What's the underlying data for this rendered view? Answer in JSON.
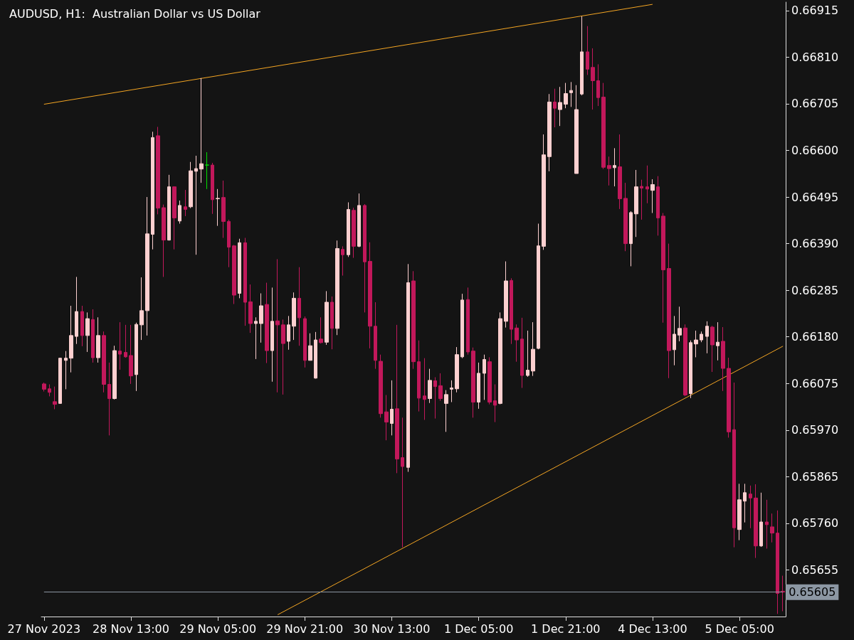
{
  "chart_data": {
    "type": "candlestick",
    "title": "AUDUSD, H1:  Australian Dollar vs US Dollar",
    "categories": [
      "27 Nov 2023",
      null,
      null,
      null,
      null,
      null,
      null,
      null,
      null,
      null,
      null,
      null,
      null,
      null,
      null,
      null,
      "28 Nov 13:00",
      null,
      null,
      null,
      null,
      null,
      null,
      null,
      null,
      null,
      null,
      null,
      null,
      null,
      null,
      null,
      "29 Nov 05:00",
      null,
      null,
      null,
      null,
      null,
      null,
      null,
      null,
      null,
      null,
      null,
      null,
      null,
      null,
      null,
      "29 Nov 21:00",
      null,
      null,
      null,
      null,
      null,
      null,
      null,
      null,
      null,
      null,
      null,
      null,
      null,
      null,
      null,
      "30 Nov 13:00",
      null,
      null,
      null,
      null,
      null,
      null,
      null,
      null,
      null,
      null,
      null,
      null,
      null,
      null,
      null,
      "1 Dec 05:00",
      null,
      null,
      null,
      null,
      null,
      null,
      null,
      null,
      null,
      null,
      null,
      null,
      null,
      null,
      null,
      "1 Dec 21:00",
      null,
      null,
      null,
      null,
      null,
      null,
      null,
      null,
      null,
      null,
      null,
      null,
      null,
      null,
      null,
      "4 Dec 13:00",
      null,
      null,
      null,
      null,
      null,
      null,
      null,
      null,
      null,
      null,
      null,
      null,
      null,
      null,
      null,
      "5 Dec 05:00",
      null,
      null,
      null,
      null,
      null,
      null,
      null,
      null
    ],
    "ohlc": [
      [
        0.66074,
        0.66077,
        0.66057,
        0.66062
      ],
      [
        0.66063,
        0.66073,
        0.66046,
        0.66055
      ],
      [
        0.66034,
        0.66068,
        0.66017,
        0.66028
      ],
      [
        0.6603,
        0.66133,
        0.6603,
        0.66132
      ],
      [
        0.66127,
        0.66148,
        0.66062,
        0.66132
      ],
      [
        0.66132,
        0.6625,
        0.661,
        0.66183
      ],
      [
        0.66181,
        0.66315,
        0.66164,
        0.66237
      ],
      [
        0.66237,
        0.6625,
        0.66159,
        0.66183
      ],
      [
        0.66183,
        0.66235,
        0.66146,
        0.66221
      ],
      [
        0.66219,
        0.66242,
        0.66122,
        0.66133
      ],
      [
        0.66133,
        0.66224,
        0.66122,
        0.66183
      ],
      [
        0.66183,
        0.66192,
        0.66055,
        0.66073
      ],
      [
        0.66073,
        0.66122,
        0.65958,
        0.66041
      ],
      [
        0.66041,
        0.6616,
        0.66039,
        0.66149
      ],
      [
        0.66148,
        0.66213,
        0.66106,
        0.66141
      ],
      [
        0.66145,
        0.66207,
        0.66133,
        0.66135
      ],
      [
        0.66138,
        0.66207,
        0.66074,
        0.66092
      ],
      [
        0.66095,
        0.66212,
        0.66058,
        0.66208
      ],
      [
        0.66207,
        0.66314,
        0.66173,
        0.66239
      ],
      [
        0.66239,
        0.66495,
        0.66183,
        0.66412
      ],
      [
        0.66411,
        0.66642,
        0.66377,
        0.66629
      ],
      [
        0.66633,
        0.66653,
        0.66456,
        0.6647
      ],
      [
        0.66471,
        0.66478,
        0.66315,
        0.66398
      ],
      [
        0.66398,
        0.66545,
        0.66397,
        0.66518
      ],
      [
        0.66518,
        0.66519,
        0.66377,
        0.66448
      ],
      [
        0.66441,
        0.66487,
        0.66435,
        0.66476
      ],
      [
        0.66473,
        0.66511,
        0.66452,
        0.66467
      ],
      [
        0.66473,
        0.66574,
        0.6647,
        0.66554
      ],
      [
        0.66553,
        0.66588,
        0.66365,
        0.66559
      ],
      [
        0.66558,
        0.66763,
        0.66527,
        0.6657
      ],
      [
        0.66567,
        0.66596,
        0.66513,
        0.66567
      ],
      [
        0.66567,
        0.66572,
        0.66457,
        0.66489
      ],
      [
        0.66491,
        0.66513,
        0.6643,
        0.66492
      ],
      [
        0.66494,
        0.66532,
        0.66403,
        0.6644
      ],
      [
        0.6644,
        0.66444,
        0.66337,
        0.66382
      ],
      [
        0.66385,
        0.66387,
        0.66254,
        0.66274
      ],
      [
        0.66278,
        0.66401,
        0.66267,
        0.66392
      ],
      [
        0.66392,
        0.66403,
        0.66205,
        0.66258
      ],
      [
        0.66259,
        0.66298,
        0.66189,
        0.6621
      ],
      [
        0.6621,
        0.66224,
        0.6613,
        0.66215
      ],
      [
        0.6621,
        0.66278,
        0.66167,
        0.6625
      ],
      [
        0.66253,
        0.66302,
        0.66121,
        0.66149
      ],
      [
        0.66149,
        0.66291,
        0.66079,
        0.66215
      ],
      [
        0.66216,
        0.66355,
        0.66055,
        0.66207
      ],
      [
        0.66207,
        0.66219,
        0.6605,
        0.66165
      ],
      [
        0.6617,
        0.66227,
        0.66151,
        0.66207
      ],
      [
        0.66204,
        0.6628,
        0.66173,
        0.66267
      ],
      [
        0.66267,
        0.66337,
        0.6616,
        0.66223
      ],
      [
        0.66221,
        0.66226,
        0.66111,
        0.66127
      ],
      [
        0.66127,
        0.66188,
        0.66127,
        0.6616
      ],
      [
        0.66087,
        0.66191,
        0.66086,
        0.66173
      ],
      [
        0.66175,
        0.66224,
        0.66165,
        0.66167
      ],
      [
        0.66168,
        0.66283,
        0.66162,
        0.66258
      ],
      [
        0.66258,
        0.66271,
        0.66152,
        0.66199
      ],
      [
        0.66199,
        0.66397,
        0.66184,
        0.66379
      ],
      [
        0.66377,
        0.66384,
        0.66318,
        0.66365
      ],
      [
        0.66365,
        0.66483,
        0.6636,
        0.66467
      ],
      [
        0.66465,
        0.66471,
        0.66358,
        0.66384
      ],
      [
        0.66384,
        0.66503,
        0.66382,
        0.66476
      ],
      [
        0.66476,
        0.66479,
        0.66235,
        0.66349
      ],
      [
        0.6635,
        0.66393,
        0.66154,
        0.66204
      ],
      [
        0.66204,
        0.66258,
        0.66108,
        0.66127
      ],
      [
        0.66125,
        0.6614,
        0.65998,
        0.66007
      ],
      [
        0.66011,
        0.66049,
        0.65947,
        0.65988
      ],
      [
        0.65985,
        0.66082,
        0.65958,
        0.66017
      ],
      [
        0.66018,
        0.66207,
        0.65873,
        0.65905
      ],
      [
        0.65908,
        0.65998,
        0.65706,
        0.65888
      ],
      [
        0.65886,
        0.66344,
        0.65876,
        0.66302
      ],
      [
        0.66306,
        0.66328,
        0.66108,
        0.66124
      ],
      [
        0.66124,
        0.66172,
        0.66012,
        0.66042
      ],
      [
        0.66047,
        0.66132,
        0.65993,
        0.66039
      ],
      [
        0.66041,
        0.66108,
        0.66031,
        0.66082
      ],
      [
        0.66081,
        0.66089,
        0.65996,
        0.66068
      ],
      [
        0.6607,
        0.66098,
        0.66036,
        0.66041
      ],
      [
        0.6603,
        0.6606,
        0.65966,
        0.6605
      ],
      [
        0.66062,
        0.66082,
        0.66033,
        0.66065
      ],
      [
        0.66063,
        0.66157,
        0.66055,
        0.6614
      ],
      [
        0.66135,
        0.66277,
        0.66132,
        0.66263
      ],
      [
        0.66264,
        0.66291,
        0.6614,
        0.66146
      ],
      [
        0.66148,
        0.66156,
        0.65998,
        0.66033
      ],
      [
        0.66033,
        0.66122,
        0.66018,
        0.66098
      ],
      [
        0.66098,
        0.6614,
        0.66038,
        0.66129
      ],
      [
        0.66124,
        0.66134,
        0.66028,
        0.66033
      ],
      [
        0.66036,
        0.66073,
        0.65988,
        0.66026
      ],
      [
        0.6603,
        0.66235,
        0.66028,
        0.66221
      ],
      [
        0.66215,
        0.6635,
        0.66201,
        0.66306
      ],
      [
        0.66307,
        0.66312,
        0.66164,
        0.66197
      ],
      [
        0.662,
        0.66208,
        0.66124,
        0.66173
      ],
      [
        0.66175,
        0.66223,
        0.66065,
        0.66093
      ],
      [
        0.66093,
        0.66194,
        0.6609,
        0.66105
      ],
      [
        0.66103,
        0.66213,
        0.66092,
        0.66152
      ],
      [
        0.66154,
        0.66435,
        0.66152,
        0.66385
      ],
      [
        0.66384,
        0.66636,
        0.66376,
        0.6659
      ],
      [
        0.66586,
        0.66727,
        0.66553,
        0.66709
      ],
      [
        0.66709,
        0.66739,
        0.66652,
        0.66695
      ],
      [
        0.66692,
        0.66743,
        0.66655,
        0.66708
      ],
      [
        0.66704,
        0.66752,
        0.66695,
        0.66728
      ],
      [
        0.6673,
        0.66754,
        0.66698,
        0.66735
      ],
      [
        0.66548,
        0.66747,
        0.66548,
        0.66692
      ],
      [
        0.66727,
        0.66902,
        0.66724,
        0.66822
      ],
      [
        0.66822,
        0.6688,
        0.6677,
        0.66783
      ],
      [
        0.66787,
        0.6683,
        0.66692,
        0.66757
      ],
      [
        0.66757,
        0.66794,
        0.667,
        0.66719
      ],
      [
        0.6672,
        0.66752,
        0.66558,
        0.66562
      ],
      [
        0.66566,
        0.66586,
        0.66521,
        0.66559
      ],
      [
        0.66561,
        0.66605,
        0.66519,
        0.66566
      ],
      [
        0.66563,
        0.66636,
        0.66468,
        0.66491
      ],
      [
        0.66492,
        0.66527,
        0.66373,
        0.6639
      ],
      [
        0.6639,
        0.66463,
        0.66339,
        0.6646
      ],
      [
        0.66457,
        0.66556,
        0.66405,
        0.66518
      ],
      [
        0.66519,
        0.66534,
        0.66444,
        0.66515
      ],
      [
        0.66518,
        0.66566,
        0.66481,
        0.66513
      ],
      [
        0.6651,
        0.66535,
        0.66459,
        0.66523
      ],
      [
        0.66518,
        0.66542,
        0.66408,
        0.66448
      ],
      [
        0.66452,
        0.66459,
        0.66212,
        0.66331
      ],
      [
        0.66334,
        0.6639,
        0.66087,
        0.66149
      ],
      [
        0.66151,
        0.66227,
        0.66116,
        0.66186
      ],
      [
        0.66184,
        0.66248,
        0.6617,
        0.66199
      ],
      [
        0.662,
        0.66208,
        0.66046,
        0.66049
      ],
      [
        0.66052,
        0.66172,
        0.66042,
        0.66167
      ],
      [
        0.66164,
        0.66194,
        0.66134,
        0.66173
      ],
      [
        0.66173,
        0.66192,
        0.66168,
        0.66186
      ],
      [
        0.66181,
        0.66215,
        0.66143,
        0.66204
      ],
      [
        0.66202,
        0.66205,
        0.66101,
        0.66162
      ],
      [
        0.6616,
        0.66213,
        0.66127,
        0.66168
      ],
      [
        0.6617,
        0.66202,
        0.66058,
        0.66109
      ],
      [
        0.66109,
        0.66133,
        0.65953,
        0.65966
      ],
      [
        0.65971,
        0.66077,
        0.65706,
        0.6575
      ],
      [
        0.65746,
        0.65849,
        0.65722,
        0.65813
      ],
      [
        0.6581,
        0.65849,
        0.65762,
        0.65829
      ],
      [
        0.65826,
        0.65845,
        0.65749,
        0.65817
      ],
      [
        0.65817,
        0.65848,
        0.65682,
        0.65709
      ],
      [
        0.65709,
        0.65829,
        0.65707,
        0.65763
      ],
      [
        0.65763,
        0.65813,
        0.65703,
        0.65757
      ],
      [
        0.65752,
        0.65782,
        0.65717,
        0.65738
      ],
      [
        0.65738,
        0.65789,
        0.65556,
        0.65602
      ],
      [
        0.65607,
        0.65642,
        0.65562,
        0.65605
      ]
    ],
    "colors": [
      "#c2185b",
      "#c2185b",
      "#c2185b",
      "#fdd0d0",
      "#fdd0d0",
      "#fdd0d0",
      "#fdd0d0",
      "#c2185b",
      "#fdd0d0",
      "#c2185b",
      "#fdd0d0",
      "#c2185b",
      "#c2185b",
      "#fdd0d0",
      "#c2185b",
      "#c2185b",
      "#c2185b",
      "#fdd0d0",
      "#fdd0d0",
      "#fdd0d0",
      "#fdd0d0",
      "#c2185b",
      "#c2185b",
      "#fdd0d0",
      "#c2185b",
      "#fdd0d0",
      "#c2185b",
      "#fdd0d0",
      "#fdd0d0",
      "#fdd0d0",
      "#00e000",
      "#c2185b",
      "#fdd0d0",
      "#c2185b",
      "#c2185b",
      "#c2185b",
      "#fdd0d0",
      "#c2185b",
      "#c2185b",
      "#fdd0d0",
      "#fdd0d0",
      "#c2185b",
      "#fdd0d0",
      "#c2185b",
      "#c2185b",
      "#fdd0d0",
      "#fdd0d0",
      "#c2185b",
      "#c2185b",
      "#fdd0d0",
      "#fdd0d0",
      "#c2185b",
      "#fdd0d0",
      "#c2185b",
      "#fdd0d0",
      "#c2185b",
      "#fdd0d0",
      "#c2185b",
      "#fdd0d0",
      "#c2185b",
      "#c2185b",
      "#c2185b",
      "#c2185b",
      "#c2185b",
      "#fdd0d0",
      "#c2185b",
      "#c2185b",
      "#fdd0d0",
      "#c2185b",
      "#c2185b",
      "#c2185b",
      "#fdd0d0",
      "#c2185b",
      "#c2185b",
      "#fdd0d0",
      "#fdd0d0",
      "#fdd0d0",
      "#fdd0d0",
      "#c2185b",
      "#c2185b",
      "#fdd0d0",
      "#fdd0d0",
      "#c2185b",
      "#c2185b",
      "#fdd0d0",
      "#fdd0d0",
      "#c2185b",
      "#c2185b",
      "#c2185b",
      "#fdd0d0",
      "#fdd0d0",
      "#fdd0d0",
      "#fdd0d0",
      "#fdd0d0",
      "#c2185b",
      "#fdd0d0",
      "#fdd0d0",
      "#fdd0d0",
      "#fdd0d0",
      "#fdd0d0",
      "#c2185b",
      "#c2185b",
      "#c2185b",
      "#c2185b",
      "#c2185b",
      "#fdd0d0",
      "#c2185b",
      "#c2185b",
      "#fdd0d0",
      "#fdd0d0",
      "#c2185b",
      "#c2185b",
      "#fdd0d0",
      "#c2185b",
      "#c2185b",
      "#c2185b",
      "#fdd0d0",
      "#fdd0d0",
      "#c2185b",
      "#fdd0d0",
      "#fdd0d0",
      "#fdd0d0",
      "#fdd0d0",
      "#c2185b",
      "#fdd0d0",
      "#c2185b",
      "#c2185b",
      "#c2185b",
      "#fdd0d0",
      "#fdd0d0",
      "#c2185b",
      "#c2185b",
      "#fdd0d0",
      "#c2185b",
      "#c2185b",
      "#c2185b",
      "#c2185b"
    ],
    "series": [
      {
        "type": "line",
        "color": "#f5a623",
        "values": [
          0.66704,
          null,
          null,
          null,
          null,
          null,
          null,
          null,
          null,
          null,
          null,
          null,
          null,
          null,
          null,
          null,
          null,
          null,
          null,
          null,
          null,
          null,
          null,
          null,
          null,
          null,
          null,
          null,
          null,
          null,
          null,
          null,
          null,
          null,
          null,
          null,
          null,
          null,
          null,
          null,
          null,
          null,
          null,
          null,
          null,
          null,
          null,
          null,
          null,
          null,
          null,
          null,
          null,
          null,
          null,
          null,
          null,
          null,
          null,
          null,
          null,
          null,
          null,
          null,
          null,
          null,
          null,
          null,
          null,
          null,
          null,
          null,
          null,
          null,
          null,
          null,
          null,
          null,
          null,
          null,
          null,
          null,
          null,
          null,
          null,
          null,
          null,
          null,
          null,
          null,
          null,
          null,
          null,
          null,
          null,
          null,
          null,
          null,
          null,
          null,
          null,
          null,
          null,
          null,
          null,
          null,
          null,
          null,
          null,
          null,
          null,
          null,
          0.66929,
          null,
          null,
          null,
          null,
          null,
          null,
          null,
          null,
          null,
          null,
          null,
          null,
          null,
          null,
          null,
          null,
          null,
          null,
          null,
          null,
          null,
          null,
          null,
          null
        ]
      },
      {
        "type": "line",
        "color": "#f5a623",
        "values": [
          null,
          null,
          null,
          null,
          null,
          null,
          null,
          null,
          null,
          null,
          null,
          null,
          null,
          null,
          null,
          null,
          null,
          null,
          null,
          null,
          null,
          null,
          null,
          null,
          null,
          null,
          null,
          null,
          null,
          null,
          null,
          null,
          null,
          null,
          null,
          null,
          null,
          null,
          null,
          null,
          null,
          null,
          null,
          0.65554,
          null,
          null,
          null,
          null,
          null,
          null,
          null,
          null,
          null,
          null,
          null,
          null,
          null,
          null,
          null,
          null,
          null,
          null,
          null,
          null,
          null,
          null,
          null,
          null,
          null,
          null,
          null,
          null,
          null,
          null,
          null,
          null,
          null,
          null,
          null,
          null,
          null,
          null,
          null,
          null,
          null,
          null,
          null,
          null,
          null,
          null,
          null,
          null,
          null,
          null,
          null,
          null,
          null,
          null,
          null,
          null,
          null,
          null,
          null,
          null,
          null,
          null,
          null,
          null,
          null,
          null,
          null,
          null,
          null,
          null,
          null,
          null,
          null,
          null,
          null,
          null,
          null,
          null,
          null,
          null,
          null,
          null,
          null,
          null,
          null,
          null,
          null,
          null,
          null,
          null,
          null,
          null,
          0.66159
        ]
      }
    ],
    "ylim": [
      0.6555,
      0.66934
    ],
    "yticks": [
      {
        "value": 0.66915,
        "label": "0.66915"
      },
      {
        "value": 0.6681,
        "label": "0.66810"
      },
      {
        "value": 0.66705,
        "label": "0.66705"
      },
      {
        "value": 0.666,
        "label": "0.66600"
      },
      {
        "value": 0.66495,
        "label": "0.66495"
      },
      {
        "value": 0.6639,
        "label": "0.66390"
      },
      {
        "value": 0.66285,
        "label": "0.66285"
      },
      {
        "value": 0.6618,
        "label": "0.66180"
      },
      {
        "value": 0.66075,
        "label": "0.66075"
      },
      {
        "value": 0.6597,
        "label": "0.65970"
      },
      {
        "value": 0.65865,
        "label": "0.65865"
      },
      {
        "value": 0.6576,
        "label": "0.65760"
      },
      {
        "value": 0.65655,
        "label": "0.65655"
      }
    ],
    "ref_lines": [
      {
        "axis": "y",
        "value": 0.65605,
        "label": "0.65605",
        "color": "#8c97a3"
      }
    ]
  }
}
